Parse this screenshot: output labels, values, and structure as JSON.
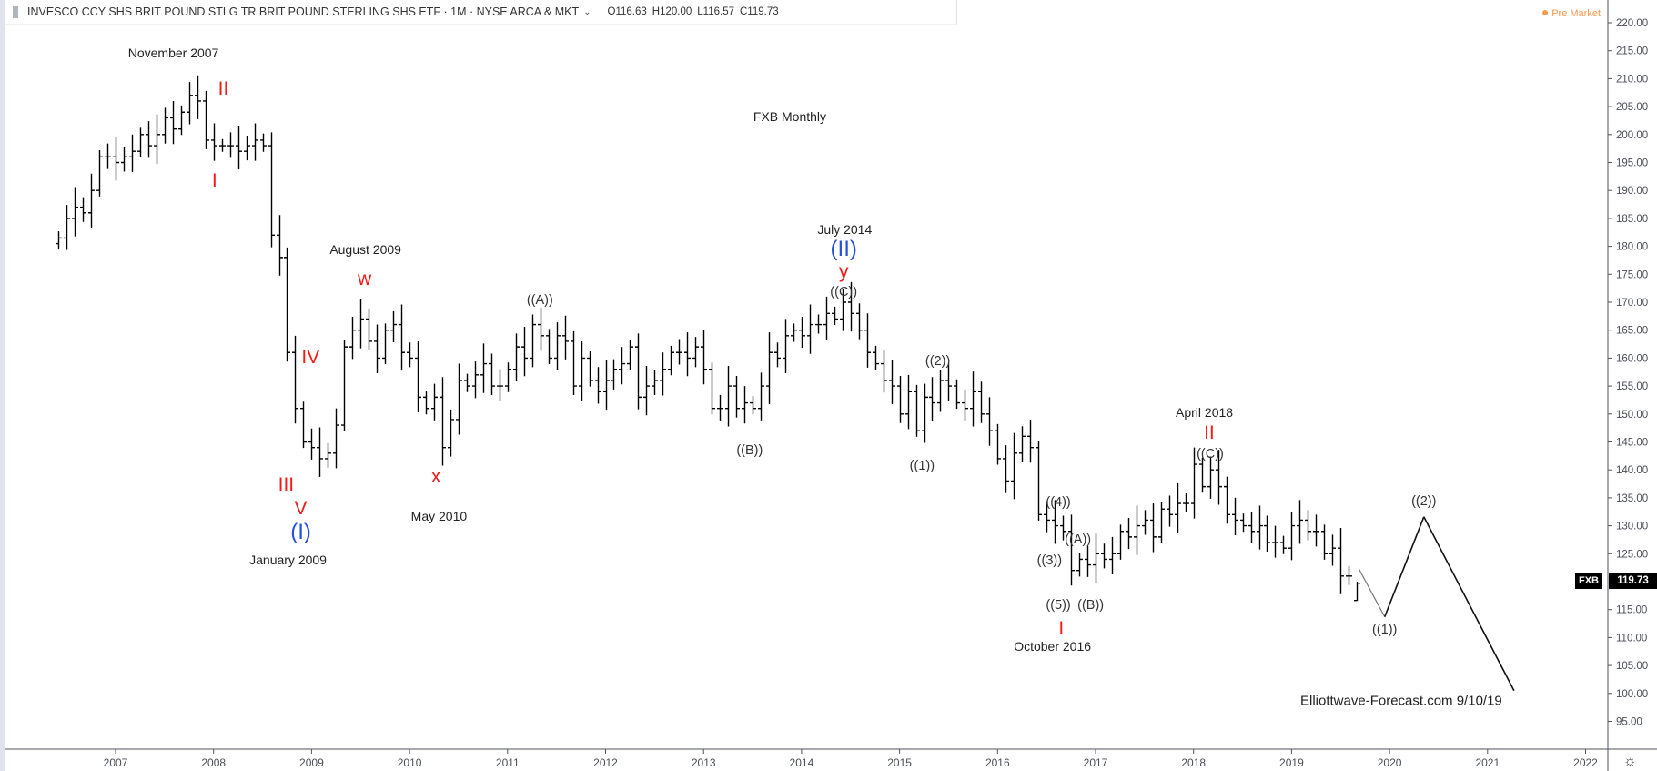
{
  "header": {
    "title": "INVESCO CCY SHS BRIT POUND STLG TR BRIT POUND STERLING SHS ETF · 1M · NYSE ARCA & MKT",
    "open": "O116.63",
    "high": "H120.00",
    "low": "L116.57",
    "close": "C119.73",
    "pre_market": "Pre Market"
  },
  "price_tag": {
    "symbol": "FXB",
    "value": "119.73"
  },
  "colors": {
    "bars": "#000000",
    "wave_red": "#f21a1a",
    "wave_blue": "#2450de",
    "pre_market": "#ff9850"
  },
  "icons": {
    "settings": "gear-icon",
    "symbol_flag": "flag-icon",
    "menu": "chevron-down-icon"
  },
  "chart_data": {
    "type": "ohlc",
    "interval": "monthly",
    "start_month": "2006-06",
    "close": [
      181.5,
      185,
      187,
      186,
      190,
      196,
      196,
      195,
      196,
      197,
      200,
      198,
      200,
      203,
      201,
      204,
      207,
      206,
      199,
      198,
      198,
      198,
      197,
      198,
      199,
      198,
      182,
      178,
      161,
      151,
      145,
      144,
      142,
      143,
      148,
      162,
      165,
      167,
      163,
      160,
      165,
      166,
      161,
      160,
      153,
      151,
      153,
      144,
      149,
      156,
      155,
      157,
      159,
      155,
      155,
      158,
      162,
      160,
      166,
      164,
      160,
      164,
      163,
      155,
      160,
      156,
      154,
      156,
      158,
      159,
      162,
      153,
      155,
      156,
      158,
      161,
      161,
      160,
      162,
      158,
      151,
      151,
      155,
      151,
      152,
      151,
      155,
      161,
      160,
      164,
      165,
      164,
      166,
      166,
      168,
      167,
      170,
      168,
      165,
      161,
      159,
      156,
      155,
      150,
      154,
      147,
      153,
      152,
      156,
      155,
      152,
      151,
      154,
      150,
      147,
      142,
      138,
      143,
      146,
      144,
      132,
      131,
      130,
      129,
      122,
      124,
      123,
      125,
      124,
      125,
      129,
      128,
      130,
      131,
      128,
      133,
      132,
      134,
      134,
      141,
      137,
      140,
      137,
      132,
      131,
      130,
      129,
      130,
      127,
      127,
      126,
      130,
      131,
      129,
      129,
      125,
      126,
      121,
      121,
      119.73
    ],
    "last_bar": {
      "open": 116.63,
      "high": 120.0,
      "low": 116.57,
      "close": 119.73
    },
    "projection": [
      {
        "date": 2019.69,
        "price": 122.2
      },
      {
        "date": 2019.95,
        "price": 113.7
      },
      {
        "date": 2020.35,
        "price": 131.6
      },
      {
        "date": 2021.27,
        "price": 100.5
      }
    ],
    "y_ticks": [
      220,
      215,
      210,
      205,
      200,
      195,
      190,
      185,
      180,
      175,
      170,
      165,
      160,
      155,
      150,
      145,
      140,
      135,
      130,
      125,
      115,
      110,
      105,
      100,
      95
    ],
    "y_tick_labels": [
      "220.00",
      "215.00",
      "210.00",
      "205.00",
      "200.00",
      "195.00",
      "190.00",
      "185.00",
      "180.00",
      "175.00",
      "170.00",
      "165.00",
      "160.00",
      "155.00",
      "150.00",
      "145.00",
      "140.00",
      "135.00",
      "130.00",
      "125.00",
      "115.00",
      "110.00",
      "105.00",
      "100.00",
      "95.00"
    ],
    "x_ticks": [
      "2007",
      "2008",
      "2009",
      "2010",
      "2011",
      "2012",
      "2013",
      "2014",
      "2015",
      "2016",
      "2017",
      "2018",
      "2019",
      "2020",
      "2021",
      "2022"
    ],
    "ylim": [
      95,
      220
    ],
    "grid": false,
    "annotations": [
      {
        "text": "November 2007",
        "style": "txt",
        "date": 2007.59,
        "price": 214.7
      },
      {
        "text": "II",
        "style": "red",
        "date": 2008.1,
        "price": 208.1
      },
      {
        "text": "I",
        "style": "red",
        "date": 2008.01,
        "price": 191.7
      },
      {
        "text": "FXB Monthly",
        "style": "txt",
        "date": 2013.88,
        "price": 203.2
      },
      {
        "text": "July 2014",
        "style": "txt",
        "date": 2014.44,
        "price": 183.0
      },
      {
        "text": "(II)",
        "style": "blue",
        "date": 2014.43,
        "price": 179.4
      },
      {
        "text": "y",
        "style": "red",
        "date": 2014.43,
        "price": 175.4
      },
      {
        "text": "((C))",
        "style": "wave",
        "date": 2014.43,
        "price": 171.8
      },
      {
        "text": "August 2009",
        "style": "txt",
        "date": 2009.55,
        "price": 179.4
      },
      {
        "text": "w",
        "style": "red",
        "date": 2009.54,
        "price": 174.1
      },
      {
        "text": "((A))",
        "style": "wave",
        "date": 2011.33,
        "price": 170.3
      },
      {
        "text": "IV",
        "style": "red",
        "date": 2008.99,
        "price": 160.0
      },
      {
        "text": "III",
        "style": "red",
        "date": 2008.74,
        "price": 137.3
      },
      {
        "text": "V",
        "style": "red",
        "date": 2008.89,
        "price": 133.0
      },
      {
        "text": "(I)",
        "style": "blue",
        "date": 2008.89,
        "price": 128.8
      },
      {
        "text": "January 2009",
        "style": "txt",
        "date": 2008.76,
        "price": 123.9
      },
      {
        "text": "x",
        "style": "red",
        "date": 2010.27,
        "price": 138.8
      },
      {
        "text": "May 2010",
        "style": "txt",
        "date": 2010.3,
        "price": 131.8
      },
      {
        "text": "((B))",
        "style": "wave",
        "date": 2013.47,
        "price": 143.5
      },
      {
        "text": "((2))",
        "style": "wave",
        "date": 2015.39,
        "price": 159.4
      },
      {
        "text": "((1))",
        "style": "wave",
        "date": 2015.23,
        "price": 140.7
      },
      {
        "text": "April 2018",
        "style": "txt",
        "date": 2018.11,
        "price": 150.3
      },
      {
        "text": "II",
        "style": "red",
        "date": 2018.16,
        "price": 146.5
      },
      {
        "text": "((C))",
        "style": "wave",
        "date": 2018.17,
        "price": 142.8
      },
      {
        "text": "((4))",
        "style": "wave",
        "date": 2016.62,
        "price": 134.1
      },
      {
        "text": "((A))",
        "style": "wave",
        "date": 2016.82,
        "price": 127.5
      },
      {
        "text": "((3))",
        "style": "wave",
        "date": 2016.53,
        "price": 123.7
      },
      {
        "text": "((B))",
        "style": "wave",
        "date": 2016.95,
        "price": 115.8
      },
      {
        "text": "((5))",
        "style": "wave",
        "date": 2016.62,
        "price": 115.8
      },
      {
        "text": "I",
        "style": "red",
        "date": 2016.65,
        "price": 111.6
      },
      {
        "text": "October 2016",
        "style": "txt",
        "date": 2016.56,
        "price": 108.4
      },
      {
        "text": "((2))",
        "style": "wave",
        "date": 2020.35,
        "price": 134.3
      },
      {
        "text": "((1))",
        "style": "wave",
        "date": 2019.95,
        "price": 111.4
      }
    ],
    "watermark": "Elliottwave-Forecast.com  9/10/19"
  }
}
